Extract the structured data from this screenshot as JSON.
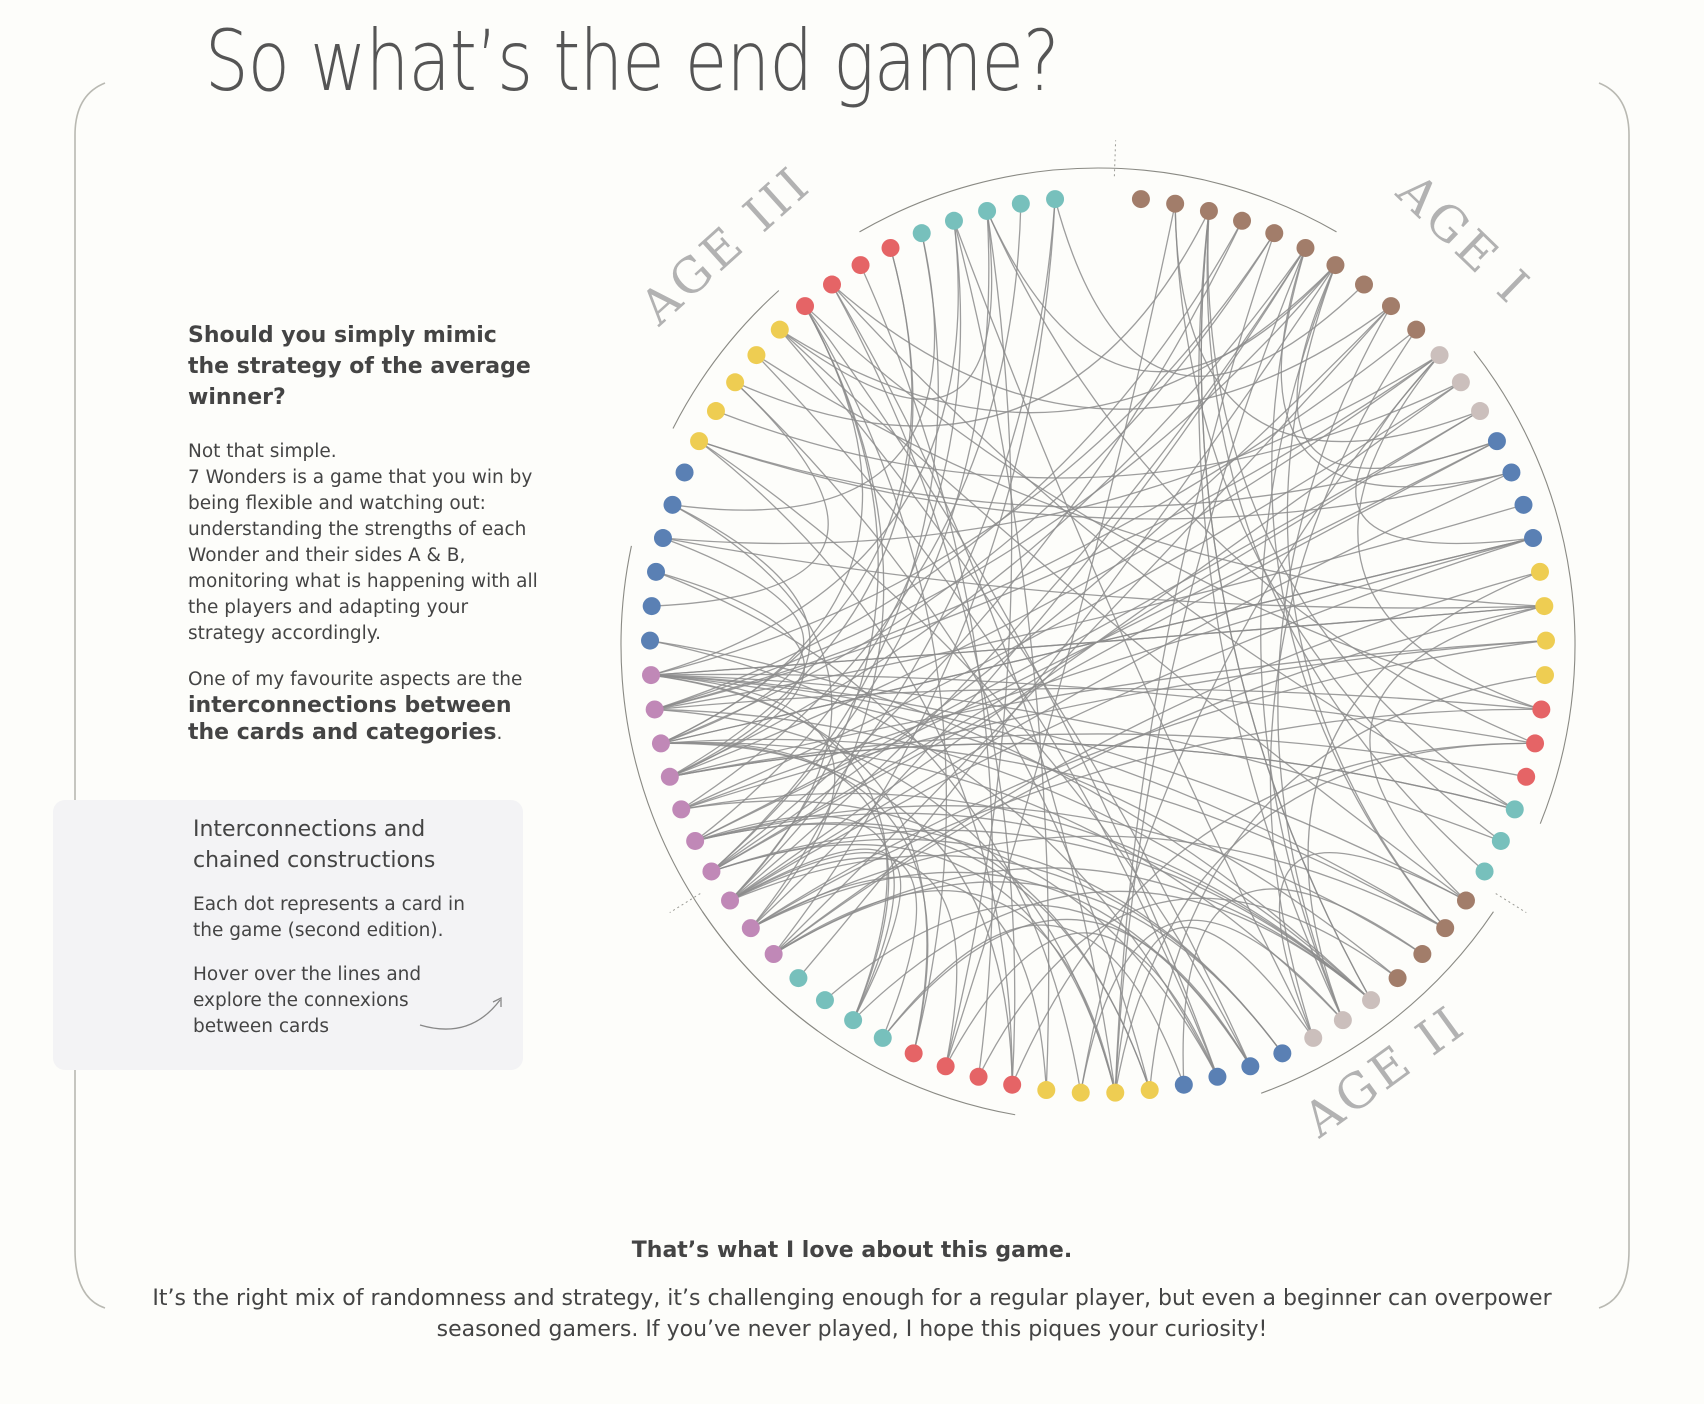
{
  "title": "So what’s the end game?",
  "intro": {
    "question": "Should you simply mimic the strategy of the average winner?",
    "lines": [
      "Not that simple.",
      "7 Wonders is a game that you win by being flexible and watching out: understanding the strengths of each Wonder and their sides A & B, monitoring what is happening with all the players and adapting your strategy accordingly."
    ],
    "favourite_prefix": "One of my favourite aspects are the ",
    "favourite_bold": "interconnections between the cards and categories",
    "favourite_suffix": "."
  },
  "callout": {
    "title": "Interconnections and chained constructions",
    "text1": "Each dot represents a card in the game (second edition).",
    "text2": "Hover over the lines and explore the connexions between cards"
  },
  "diagram": {
    "ages": [
      "AGE I",
      "AGE II",
      "AGE III"
    ],
    "colors": {
      "brown": "#a27d6a",
      "gray": "#cbbfbc",
      "blue": "#5a80b4",
      "yellow": "#eecd52",
      "red": "#e56466",
      "teal": "#77c0bc",
      "purple": "#c088b7",
      "line": "#8c8c8c"
    },
    "dots": [
      "brown",
      "brown",
      "brown",
      "brown",
      "brown",
      "brown",
      "brown",
      "brown",
      "brown",
      "brown",
      "gray",
      "gray",
      "gray",
      "blue",
      "blue",
      "blue",
      "blue",
      "yellow",
      "yellow",
      "yellow",
      "yellow",
      "red",
      "red",
      "red",
      "teal",
      "teal",
      "teal",
      "brown",
      "brown",
      "brown",
      "brown",
      "gray",
      "gray",
      "gray",
      "blue",
      "blue",
      "blue",
      "blue",
      "yellow",
      "yellow",
      "yellow",
      "yellow",
      "red",
      "red",
      "red",
      "red",
      "teal",
      "teal",
      "teal",
      "teal",
      "purple",
      "purple",
      "purple",
      "purple",
      "purple",
      "purple",
      "purple",
      "purple",
      "purple",
      "purple",
      "blue",
      "blue",
      "blue",
      "blue",
      "blue",
      "blue",
      "yellow",
      "yellow",
      "yellow",
      "yellow",
      "yellow",
      "red",
      "red",
      "red",
      "red",
      "teal",
      "teal",
      "teal",
      "teal",
      "teal"
    ]
  },
  "bottom": {
    "heading": "That’s what I love about this game.",
    "text": "It’s the right mix of randomness and strategy, it’s challenging enough for a regular player, but even a beginner can overpower seasoned gamers. If you’ve never played, I hope this piques your curiosity!"
  }
}
